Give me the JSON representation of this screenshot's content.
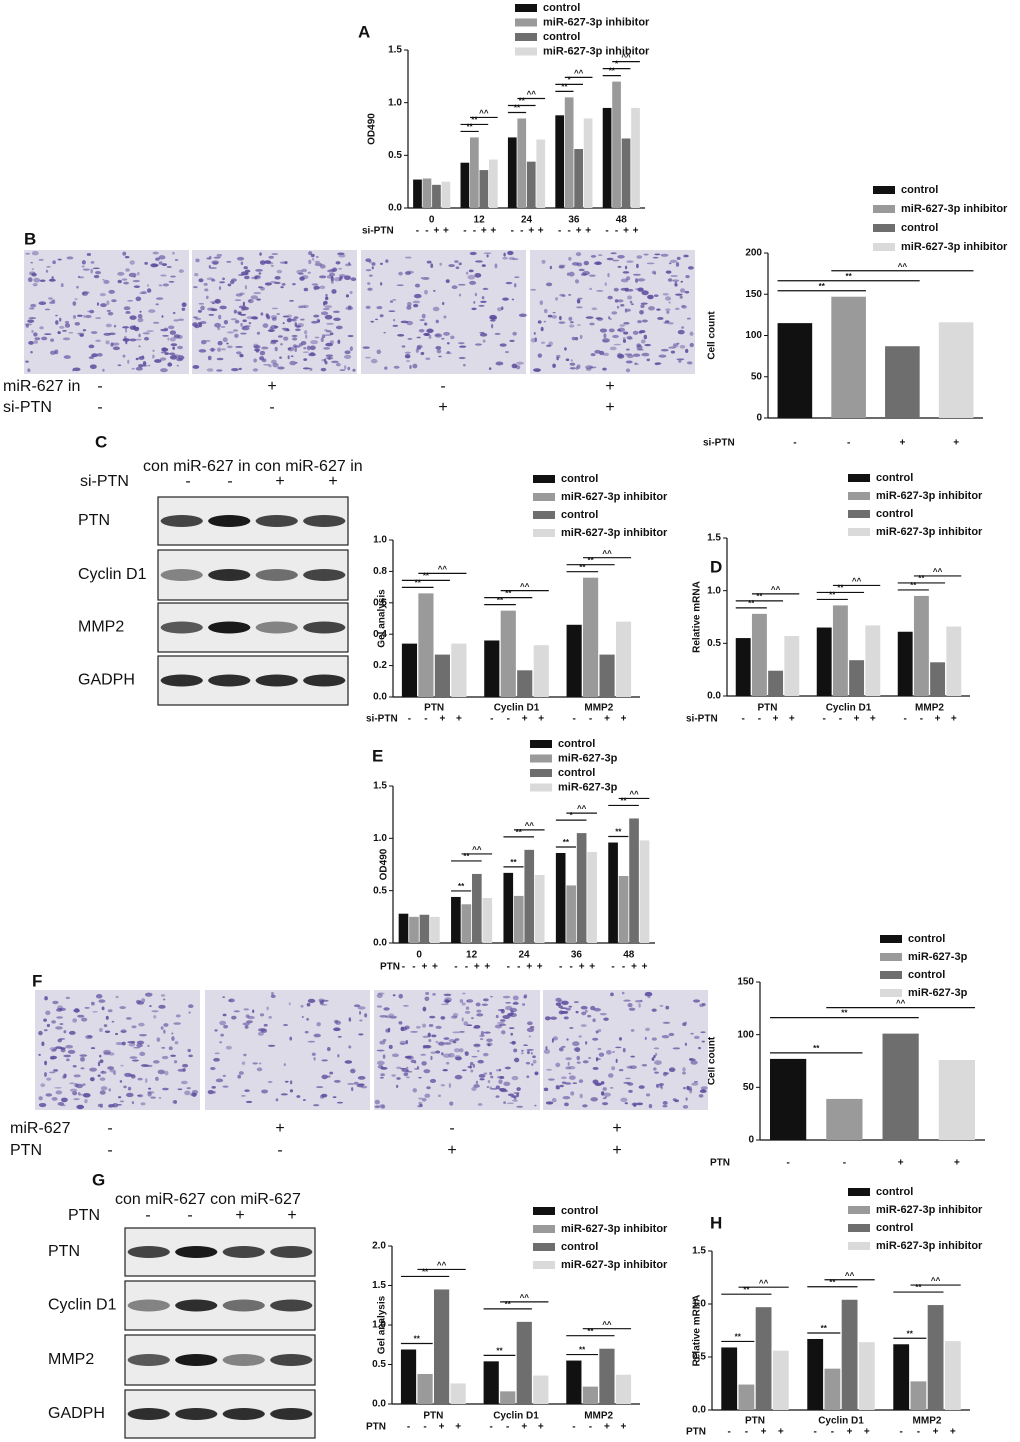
{
  "chart_data": [
    {
      "panel": "A",
      "type": "bar",
      "ylabel": "OD490",
      "categories": [
        "0",
        "12",
        "24",
        "36",
        "48"
      ],
      "series": [
        {
          "name": "control",
          "color": "#111111",
          "values": [
            0.27,
            0.43,
            0.67,
            0.88,
            0.95
          ]
        },
        {
          "name": "miR-627-3p inhibitor",
          "color": "#9a9a9a",
          "values": [
            0.28,
            0.67,
            0.85,
            1.05,
            1.2
          ]
        },
        {
          "name": "control",
          "color": "#6e6e6e",
          "values": [
            0.22,
            0.36,
            0.44,
            0.56,
            0.66
          ]
        },
        {
          "name": "miR-627-3p inhibitor",
          "color": "#dadada",
          "values": [
            0.25,
            0.46,
            0.65,
            0.85,
            0.95
          ]
        }
      ],
      "ylim": [
        0,
        1.5
      ],
      "yticks": [
        {
          "value": 0,
          "label": "0.0"
        },
        0.5,
        {
          "value": 1,
          "label": "1.0"
        },
        1.5
      ],
      "condition": {
        "label": "si-PTN",
        "signs": [
          "-",
          "-",
          "+",
          "+"
        ]
      },
      "significance": [
        {
          "group": 1,
          "from": 0,
          "to": 1,
          "label": "**"
        },
        {
          "group": 1,
          "from": 0,
          "to": 2,
          "label": "**"
        },
        {
          "group": 1,
          "from": 1,
          "to": 3,
          "label": "^^"
        },
        {
          "group": 2,
          "from": 0,
          "to": 1,
          "label": "**"
        },
        {
          "group": 2,
          "from": 0,
          "to": 2,
          "label": "**"
        },
        {
          "group": 2,
          "from": 1,
          "to": 3,
          "label": "^^"
        },
        {
          "group": 3,
          "from": 0,
          "to": 1,
          "label": "**"
        },
        {
          "group": 3,
          "from": 0,
          "to": 2,
          "label": "*"
        },
        {
          "group": 3,
          "from": 1,
          "to": 3,
          "label": "^^"
        },
        {
          "group": 4,
          "from": 0,
          "to": 1,
          "label": "**"
        },
        {
          "group": 4,
          "from": 0,
          "to": 2,
          "label": "*"
        },
        {
          "group": 4,
          "from": 1,
          "to": 3,
          "label": "^^"
        }
      ]
    },
    {
      "type": "bar",
      "ylabel": "Cell count",
      "categories": [
        null
      ],
      "series": [
        {
          "name": "control",
          "color": "#111111",
          "values": [
            115
          ]
        },
        {
          "name": "miR-627-3p inhibitor",
          "color": "#9a9a9a",
          "values": [
            147
          ]
        },
        {
          "name": "control",
          "color": "#6e6e6e",
          "values": [
            87
          ]
        },
        {
          "name": "miR-627-3p inhibitor",
          "color": "#dadada",
          "values": [
            116
          ]
        }
      ],
      "ylim": [
        0,
        200
      ],
      "yticks": [
        0,
        50,
        100,
        150,
        200
      ],
      "condition": {
        "label": "si-PTN",
        "signs": [
          "-",
          "-",
          "+",
          "+"
        ]
      },
      "significance": [
        {
          "group": 0,
          "from": 0,
          "to": 1,
          "label": "**"
        },
        {
          "group": 0,
          "from": 0,
          "to": 2,
          "label": "**"
        },
        {
          "group": 0,
          "from": 1,
          "to": 3,
          "label": "^^"
        }
      ]
    },
    {
      "type": "bar",
      "ylabel": "Gel analysis",
      "categories": [
        "PTN",
        "Cyclin D1",
        "MMP2"
      ],
      "series": [
        {
          "name": "control",
          "color": "#111111",
          "values": [
            0.34,
            0.36,
            0.46
          ]
        },
        {
          "name": "miR-627-3p inhibitor",
          "color": "#9a9a9a",
          "values": [
            0.66,
            0.55,
            0.76
          ]
        },
        {
          "name": "control",
          "color": "#6e6e6e",
          "values": [
            0.27,
            0.17,
            0.27
          ]
        },
        {
          "name": "miR-627-3p inhibitor",
          "color": "#dadada",
          "values": [
            0.34,
            0.33,
            0.48
          ]
        }
      ],
      "ylim": [
        0,
        1
      ],
      "yticks": [
        {
          "value": 0,
          "label": "0.0"
        },
        0.2,
        0.4,
        0.6,
        0.8,
        {
          "value": 1,
          "label": "1.0"
        }
      ],
      "condition": {
        "label": "si-PTN",
        "signs": [
          "-",
          "-",
          "+",
          "+"
        ]
      },
      "significance": [
        {
          "group": 0,
          "from": 0,
          "to": 1,
          "label": "**"
        },
        {
          "group": 0,
          "from": 0,
          "to": 2,
          "label": "**"
        },
        {
          "group": 0,
          "from": 1,
          "to": 3,
          "label": "^^"
        },
        {
          "group": 1,
          "from": 0,
          "to": 1,
          "label": "**"
        },
        {
          "group": 1,
          "from": 0,
          "to": 2,
          "label": "**"
        },
        {
          "group": 1,
          "from": 1,
          "to": 3,
          "label": "^^"
        },
        {
          "group": 2,
          "from": 0,
          "to": 1,
          "label": "**"
        },
        {
          "group": 2,
          "from": 0,
          "to": 2,
          "label": "**"
        },
        {
          "group": 2,
          "from": 1,
          "to": 3,
          "label": "^^"
        }
      ]
    },
    {
      "panel": "D",
      "type": "bar",
      "ylabel": "Relative mRNA",
      "categories": [
        "PTN",
        "Cyclin D1",
        "MMP2"
      ],
      "series": [
        {
          "name": "control",
          "color": "#111111",
          "values": [
            0.55,
            0.65,
            0.61
          ]
        },
        {
          "name": "miR-627-3p inhibitor",
          "color": "#9a9a9a",
          "values": [
            0.78,
            0.86,
            0.95
          ]
        },
        {
          "name": "control",
          "color": "#6e6e6e",
          "values": [
            0.24,
            0.34,
            0.32
          ]
        },
        {
          "name": "miR-627-3p inhibitor",
          "color": "#dadada",
          "values": [
            0.57,
            0.67,
            0.66
          ]
        }
      ],
      "ylim": [
        0,
        1.5
      ],
      "yticks": [
        {
          "value": 0,
          "label": "0.0"
        },
        0.5,
        {
          "value": 1,
          "label": "1.0"
        },
        1.5
      ],
      "condition": {
        "label": "si-PTN",
        "signs": [
          "-",
          "-",
          "+",
          "+"
        ]
      },
      "significance": [
        {
          "group": 0,
          "from": 0,
          "to": 1,
          "label": "**"
        },
        {
          "group": 0,
          "from": 0,
          "to": 2,
          "label": "**"
        },
        {
          "group": 0,
          "from": 1,
          "to": 3,
          "label": "^^"
        },
        {
          "group": 1,
          "from": 0,
          "to": 1,
          "label": "**"
        },
        {
          "group": 1,
          "from": 0,
          "to": 2,
          "label": "**"
        },
        {
          "group": 1,
          "from": 1,
          "to": 3,
          "label": "^^"
        },
        {
          "group": 2,
          "from": 0,
          "to": 1,
          "label": "**"
        },
        {
          "group": 2,
          "from": 0,
          "to": 2,
          "label": "**"
        },
        {
          "group": 2,
          "from": 1,
          "to": 3,
          "label": "^^"
        }
      ]
    },
    {
      "panel": "E",
      "type": "bar",
      "ylabel": "OD490",
      "categories": [
        "0",
        "12",
        "24",
        "36",
        "48"
      ],
      "series": [
        {
          "name": "control",
          "color": "#111111",
          "values": [
            0.28,
            0.44,
            0.67,
            0.86,
            0.96
          ]
        },
        {
          "name": "miR-627-3p",
          "color": "#9a9a9a",
          "values": [
            0.25,
            0.37,
            0.45,
            0.55,
            0.64
          ]
        },
        {
          "name": "control",
          "color": "#6e6e6e",
          "values": [
            0.27,
            0.66,
            0.89,
            1.05,
            1.19
          ]
        },
        {
          "name": "miR-627-3p",
          "color": "#dadada",
          "values": [
            0.25,
            0.43,
            0.65,
            0.87,
            0.98
          ]
        }
      ],
      "ylim": [
        0,
        1.5
      ],
      "yticks": [
        {
          "value": 0,
          "label": "0.0"
        },
        0.5,
        {
          "value": 1,
          "label": "1.0"
        },
        1.5
      ],
      "condition": {
        "label": "PTN",
        "signs": [
          "-",
          "-",
          "+",
          "+"
        ]
      },
      "significance": [
        {
          "group": 1,
          "from": 0,
          "to": 1,
          "label": "**"
        },
        {
          "group": 1,
          "from": 0,
          "to": 2,
          "label": "**"
        },
        {
          "group": 1,
          "from": 1,
          "to": 3,
          "label": "^^"
        },
        {
          "group": 2,
          "from": 0,
          "to": 1,
          "label": "**"
        },
        {
          "group": 2,
          "from": 0,
          "to": 2,
          "label": "**"
        },
        {
          "group": 2,
          "from": 1,
          "to": 3,
          "label": "^^"
        },
        {
          "group": 3,
          "from": 0,
          "to": 1,
          "label": "**"
        },
        {
          "group": 3,
          "from": 0,
          "to": 2,
          "label": "*"
        },
        {
          "group": 3,
          "from": 1,
          "to": 3,
          "label": "^^"
        },
        {
          "group": 4,
          "from": 0,
          "to": 1,
          "label": "**"
        },
        {
          "group": 4,
          "from": 0,
          "to": 2,
          "label": "**"
        },
        {
          "group": 4,
          "from": 1,
          "to": 3,
          "label": "^^"
        }
      ]
    },
    {
      "type": "bar",
      "ylabel": "Cell count",
      "categories": [
        null
      ],
      "series": [
        {
          "name": "control",
          "color": "#111111",
          "values": [
            77
          ]
        },
        {
          "name": "miR-627-3p",
          "color": "#9a9a9a",
          "values": [
            39
          ]
        },
        {
          "name": "control",
          "color": "#6e6e6e",
          "values": [
            101
          ]
        },
        {
          "name": "miR-627-3p",
          "color": "#dadada",
          "values": [
            76
          ]
        }
      ],
      "ylim": [
        0,
        150
      ],
      "yticks": [
        0,
        50,
        100,
        150
      ],
      "condition": {
        "label": "PTN",
        "signs": [
          "-",
          "-",
          "+",
          "+"
        ]
      },
      "significance": [
        {
          "group": 0,
          "from": 0,
          "to": 1,
          "label": "**"
        },
        {
          "group": 0,
          "from": 0,
          "to": 2,
          "label": "**"
        },
        {
          "group": 0,
          "from": 1,
          "to": 3,
          "label": "^^"
        }
      ]
    },
    {
      "type": "bar",
      "ylabel": "Gel analysis",
      "categories": [
        "PTN",
        "Cyclin D1",
        "MMP2"
      ],
      "series": [
        {
          "name": "control",
          "color": "#111111",
          "values": [
            0.69,
            0.54,
            0.55
          ]
        },
        {
          "name": "miR-627-3p inhibitor",
          "color": "#9a9a9a",
          "values": [
            0.38,
            0.16,
            0.22
          ]
        },
        {
          "name": "control",
          "color": "#6e6e6e",
          "values": [
            1.45,
            1.04,
            0.7
          ]
        },
        {
          "name": "miR-627-3p inhibitor",
          "color": "#dadada",
          "values": [
            0.26,
            0.36,
            0.37
          ]
        }
      ],
      "ylim": [
        0,
        2
      ],
      "yticks": [
        {
          "value": 0,
          "label": "0.0"
        },
        0.5,
        {
          "value": 1,
          "label": "1.0"
        },
        1.5,
        {
          "value": 2,
          "label": "2.0"
        }
      ],
      "condition": {
        "label": "PTN",
        "signs": [
          "-",
          "-",
          "+",
          "+"
        ]
      },
      "significance": [
        {
          "group": 0,
          "from": 0,
          "to": 1,
          "label": "**"
        },
        {
          "group": 0,
          "from": 0,
          "to": 2,
          "label": "**"
        },
        {
          "group": 0,
          "from": 1,
          "to": 3,
          "label": "^^"
        },
        {
          "group": 1,
          "from": 0,
          "to": 1,
          "label": "**"
        },
        {
          "group": 1,
          "from": 0,
          "to": 2,
          "label": "**"
        },
        {
          "group": 1,
          "from": 1,
          "to": 3,
          "label": "^^"
        },
        {
          "group": 2,
          "from": 0,
          "to": 1,
          "label": "**"
        },
        {
          "group": 2,
          "from": 0,
          "to": 2,
          "label": "**"
        },
        {
          "group": 2,
          "from": 1,
          "to": 3,
          "label": "^^"
        }
      ]
    },
    {
      "panel": "H",
      "type": "bar",
      "ylabel": "Relative mRNA",
      "categories": [
        "PTN",
        "Cyclin D1",
        "MMP2"
      ],
      "series": [
        {
          "name": "control",
          "color": "#111111",
          "values": [
            0.59,
            0.67,
            0.62
          ]
        },
        {
          "name": "miR-627-3p inhibitor",
          "color": "#9a9a9a",
          "values": [
            0.24,
            0.39,
            0.27
          ]
        },
        {
          "name": "control",
          "color": "#6e6e6e",
          "values": [
            0.97,
            1.04,
            0.99
          ]
        },
        {
          "name": "miR-627-3p inhibitor",
          "color": "#dadada",
          "values": [
            0.56,
            0.64,
            0.65
          ]
        }
      ],
      "ylim": [
        0,
        1.5
      ],
      "yticks": [
        {
          "value": 0,
          "label": "0.0"
        },
        0.5,
        {
          "value": 1,
          "label": "1.0"
        },
        1.5
      ],
      "condition": {
        "label": "PTN",
        "signs": [
          "-",
          "-",
          "+",
          "+"
        ]
      },
      "significance": [
        {
          "group": 0,
          "from": 0,
          "to": 1,
          "label": "**"
        },
        {
          "group": 0,
          "from": 0,
          "to": 2,
          "label": "**"
        },
        {
          "group": 0,
          "from": 1,
          "to": 3,
          "label": "^^"
        },
        {
          "group": 1,
          "from": 0,
          "to": 1,
          "label": "**"
        },
        {
          "group": 1,
          "from": 0,
          "to": 2,
          "label": "**"
        },
        {
          "group": 1,
          "from": 1,
          "to": 3,
          "label": "^^"
        },
        {
          "group": 2,
          "from": 0,
          "to": 1,
          "label": "**"
        },
        {
          "group": 2,
          "from": 0,
          "to": 2,
          "label": "**"
        },
        {
          "group": 2,
          "from": 1,
          "to": 3,
          "label": "^^"
        }
      ]
    }
  ],
  "figures": [
    {
      "panel": "B",
      "type": "micrographs",
      "rows": [
        {
          "label": "miR-627 in",
          "signs": [
            "-",
            "+",
            "-",
            "+"
          ]
        },
        {
          "label": "si-PTN",
          "signs": [
            "-",
            "-",
            "+",
            "+"
          ]
        }
      ]
    },
    {
      "panel": "C",
      "type": "blot",
      "header": "con miR-627 in con miR-627 in",
      "condition": {
        "label": "si-PTN",
        "signs": [
          "-",
          "-",
          "+",
          "+"
        ]
      },
      "bands": [
        "PTN",
        "Cyclin D1",
        "MMP2",
        "GADPH"
      ]
    },
    {
      "panel": "F",
      "type": "micrographs",
      "rows": [
        {
          "label": "miR-627",
          "signs": [
            "-",
            "+",
            "-",
            "+"
          ]
        },
        {
          "label": "PTN",
          "signs": [
            "-",
            "-",
            "+",
            "+"
          ]
        }
      ]
    },
    {
      "panel": "G",
      "type": "blot",
      "header": "con miR-627   con miR-627",
      "condition": {
        "label": "PTN",
        "signs": [
          "-",
          "-",
          "+",
          "+"
        ]
      },
      "bands": [
        "PTN",
        "Cyclin D1",
        "MMP2",
        "GADPH"
      ]
    }
  ]
}
